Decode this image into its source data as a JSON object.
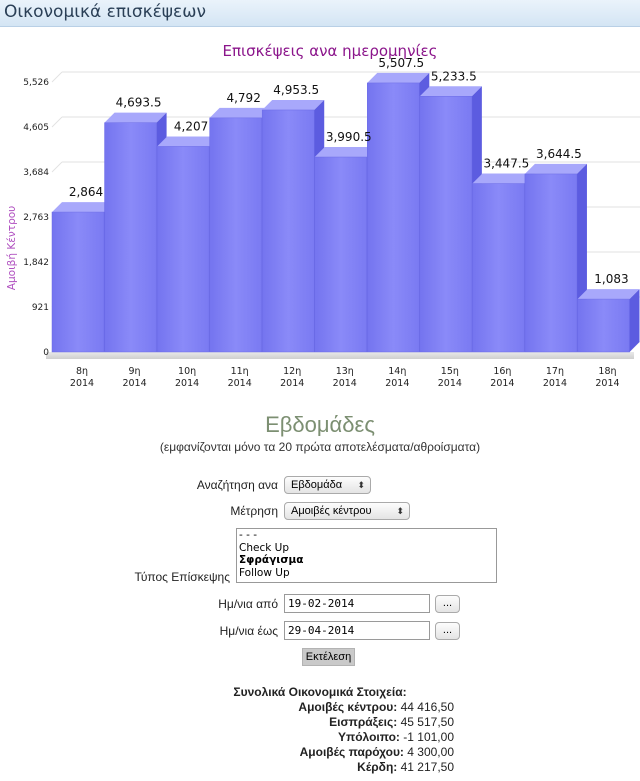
{
  "header": {
    "title": "Οικονομικά επισκέψεων"
  },
  "chart_data": {
    "type": "bar",
    "title": "Επισκέψεις ανα ημερομηνίες",
    "ylabel": "Αμοιβή Κέντρου",
    "xlabel": "",
    "ylim": [
      0,
      5526
    ],
    "yticks": [
      "0",
      "921",
      "1,842",
      "2,763",
      "3,684",
      "4,605",
      "5,526"
    ],
    "categories": [
      [
        "8η",
        "2014"
      ],
      [
        "9η",
        "2014"
      ],
      [
        "10η",
        "2014"
      ],
      [
        "11η",
        "2014"
      ],
      [
        "12η",
        "2014"
      ],
      [
        "13η",
        "2014"
      ],
      [
        "14η",
        "2014"
      ],
      [
        "15η",
        "2014"
      ],
      [
        "16η",
        "2014"
      ],
      [
        "17η",
        "2014"
      ],
      [
        "18η",
        "2014"
      ]
    ],
    "values": [
      2864,
      4693.5,
      4207,
      4792,
      4953.5,
      3990.5,
      5507.5,
      5233.5,
      3447.5,
      3644.5,
      1083
    ],
    "labels": [
      "2,864",
      "4,693.5",
      "4,207",
      "4,792",
      "4,953.5",
      "3,990.5",
      "5,507.5",
      "5,233.5",
      "3,447.5",
      "3,644.5",
      "1,083"
    ],
    "colors": {
      "bar": "#8080f5",
      "title": "#8b158b",
      "ylabel": "#b050c0"
    },
    "grid": true
  },
  "section": {
    "title": "Εβδομάδες",
    "subtitle": "(εμφανίζονται μόνο τα 20 πρώτα αποτελέσματα/αθροίσματα)"
  },
  "form": {
    "search_label": "Αναζήτηση ανα",
    "search_value": "Εβδομάδα",
    "measure_label": "Μέτρηση",
    "measure_value": "Αμοιβές κέντρου",
    "visit_type_label": "Τύπος Επίσκεψης",
    "visit_type_options": [
      "- - -",
      "Check Up",
      "Σφράγισμα",
      "Follow Up"
    ],
    "date_from_label": "Ημ/νια από",
    "date_from_value": "19-02-2014",
    "date_to_label": "Ημ/νια έως",
    "date_to_value": "29-04-2014",
    "picker_label": "...",
    "run_label": "Εκτέλεση"
  },
  "summary": {
    "title": "Συνολικά Οικονομικά Στοιχεία:",
    "rows": [
      {
        "label": "Αμοιβές κέντρου:",
        "value": "44 416,50"
      },
      {
        "label": "Εισπράξεις:",
        "value": "45 517,50"
      },
      {
        "label": "Υπόλοιπο:",
        "value": "-1 101,00"
      },
      {
        "label": "Αμοιβές παρόχου:",
        "value": "4 300,00"
      },
      {
        "label": "Κέρδη:",
        "value": "41 217,50"
      }
    ]
  }
}
